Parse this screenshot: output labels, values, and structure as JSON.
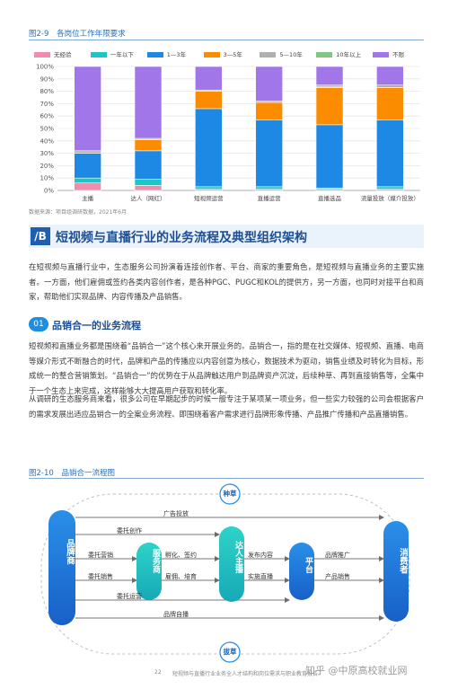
{
  "figure1": {
    "caption_num": "图2-9",
    "caption_text": "各岗位工作年限要求",
    "source": "数据来源：项目组调研数据，2021年6月"
  },
  "chart_data": {
    "type": "bar",
    "stacked": true,
    "categories": [
      "主播",
      "达人（网红）",
      "短视频运营",
      "直播运营",
      "直播选品",
      "流量投放（媒介投放）"
    ],
    "yticks": [
      "0%",
      "10%",
      "20%",
      "30%",
      "40%",
      "50%",
      "60%",
      "70%",
      "80%",
      "90%",
      "100%"
    ],
    "ylim": [
      0,
      100
    ],
    "legend_position": "top",
    "series": [
      {
        "name": "无经验",
        "color": "#f08cae",
        "values": [
          6,
          4,
          1,
          1,
          1,
          1
        ]
      },
      {
        "name": "一年以下",
        "color": "#1fc4c4",
        "values": [
          4,
          5,
          2,
          2,
          1,
          2
        ]
      },
      {
        "name": "1—3年",
        "color": "#1e88e5",
        "values": [
          20,
          23,
          63,
          54,
          51,
          54
        ]
      },
      {
        "name": "3—5年",
        "color": "#fb8c00",
        "values": [
          0,
          9,
          14,
          14,
          30,
          26
        ]
      },
      {
        "name": "5—10年",
        "color": "#b0b0b0",
        "values": [
          2,
          1,
          1,
          1,
          1,
          2
        ]
      },
      {
        "name": "10年以上",
        "color": "#81c784",
        "values": [
          0,
          0,
          0,
          0,
          1,
          0
        ]
      },
      {
        "name": "不限",
        "color": "#a176e8",
        "values": [
          68,
          58,
          19,
          28,
          15,
          15
        ]
      }
    ]
  },
  "section": {
    "badge": "/B",
    "title": "短视频与直播行业的业务流程及典型组织架构",
    "para": "在短视频与直播行业中，生态服务公司扮演着连接创作者、平台、商家的重要角色，是短视频与直播业务的主要实施者。一方面，他们雇佣或签约各类内容创作者，是各种PGC、PUGC和KOL的提供方，另一方面，也同时对接平台和商家，帮助他们实现品牌、内容传播及产品销售。"
  },
  "subsection": {
    "badge": "01",
    "title": "品销合一的业务流程",
    "para1": "短视频和直播业务都是围绕着“品销合一”这个核心来开展业务的。品销合一，指的是在社交媒体、短视频、直播、电商等媒介形式不断融合的时代，品牌和产品的传播应以内容创意为核心，数据技术为驱动，销售业绩及时转化为目标，形成统一的整合营销策划。“品销合一”的优势在于从品牌触达用户到品牌资产沉淀，后续种草、再到直接销售等，全集中于一个生态上来完成，这样能够大大提高用户获取和转化率。",
    "para2": "从调研的生态服务商来看，很多公司在早期起步的时候一般专注于某项某一项业务，但一些实力较强的公司会根据客户的需求发展出适应品销合一的全案业务流程、即围绕着客户需求进行品牌形象传播、产品推广传播和产品直播销售。"
  },
  "figure2": {
    "caption_num": "图2-10",
    "caption_text": "品销合一流程图",
    "nodes": {
      "brand": "品牌商",
      "agency": "服务商",
      "host": "达人主播",
      "platform": "平台",
      "consumer": "消费者"
    },
    "top_label": "种草",
    "bottom_label": "拔草",
    "arrows": {
      "ad": "广告投放",
      "creation": "委托创作",
      "operation": "委托营销",
      "sales": "委托销售",
      "sales2": "委托运营",
      "incubate": "孵化、签约",
      "hire": "雇佣、培育",
      "publish": "发布内容",
      "live": "实施直播",
      "promo": "品牌推广",
      "product_sale": "产品销售",
      "self_live": "品牌自播"
    }
  },
  "footer": {
    "page": "22",
    "title": "短视频与直播行业业务全人才结构和岗位需求与职业教育报告",
    "watermark": "知乎 @中原高校就业网"
  }
}
